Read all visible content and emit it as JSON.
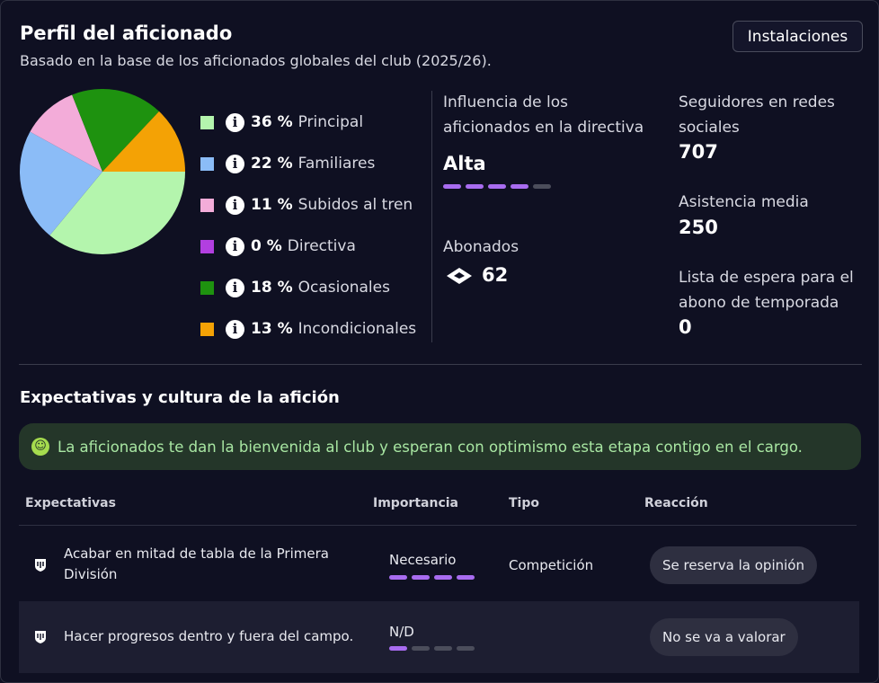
{
  "header": {
    "title": "Perfil del aficionado",
    "subtitle": "Basado en la base de los aficionados globales del club (2025/26).",
    "facilities_button": "Instalaciones"
  },
  "chart_data": {
    "type": "pie",
    "start_angle": "3 o'clock, clockwise",
    "slices": [
      {
        "label": "Principal",
        "value": 36,
        "pct_text": "36 %",
        "color": "#b4f5ad"
      },
      {
        "label": "Familiares",
        "value": 22,
        "pct_text": "22 %",
        "color": "#8bbcf7"
      },
      {
        "label": "Subidos al tren",
        "value": 11,
        "pct_text": "11 %",
        "color": "#f3acd9"
      },
      {
        "label": "Directiva",
        "value": 0,
        "pct_text": "0 %",
        "color": "#b23fe0"
      },
      {
        "label": "Ocasionales",
        "value": 18,
        "pct_text": "18 %",
        "color": "#1e920f"
      },
      {
        "label": "Incondicionales",
        "value": 13,
        "pct_text": "13 %",
        "color": "#f4a205"
      }
    ]
  },
  "stats": {
    "influence_label": "Influencia de los aficionados en la directiva",
    "influence_value": "Alta",
    "influence_level": 4,
    "influence_max": 5,
    "season_ticket_label": "Abonados",
    "season_ticket_value": "62",
    "social_label": "Seguidores en redes sociales",
    "social_value": "707",
    "attendance_label": "Asistencia media",
    "attendance_value": "250",
    "waitlist_label": "Lista de espera para el abono de temporada",
    "waitlist_value": "0"
  },
  "expectations": {
    "title": "Expectativas y cultura de la afición",
    "banner": "La aficionados te dan la bienvenida al club y esperan con optimismo esta etapa contigo en el cargo.",
    "columns": [
      "Expectativas",
      "Importancia",
      "Tipo",
      "Reacción"
    ],
    "rows": [
      {
        "text": "Acabar en mitad de tabla de la Primera División",
        "importance": "Necesario",
        "importance_level": 4,
        "importance_max": 4,
        "type": "Competición",
        "reaction": "Se reserva la opinión"
      },
      {
        "text": "Hacer progresos dentro y fuera del campo.",
        "importance": "N/D",
        "importance_level": 1,
        "importance_max": 4,
        "type": "",
        "reaction": "No se va a valorar"
      }
    ]
  }
}
